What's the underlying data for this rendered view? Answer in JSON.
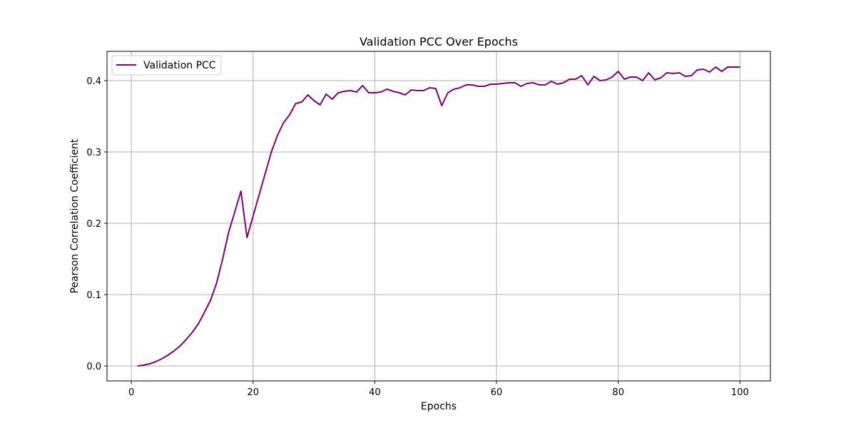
{
  "chart_data": {
    "type": "line",
    "title": "Validation PCC Over Epochs",
    "xlabel": "Epochs",
    "ylabel": "Pearson Correlation Coefficient",
    "xlim": [
      -4,
      105
    ],
    "ylim": [
      -0.021,
      0.441
    ],
    "xticks": [
      0,
      20,
      40,
      60,
      80,
      100
    ],
    "yticks": [
      0.0,
      0.1,
      0.2,
      0.3,
      0.4
    ],
    "xtick_labels": [
      "0",
      "20",
      "40",
      "60",
      "80",
      "100"
    ],
    "ytick_labels": [
      "0.0",
      "0.1",
      "0.2",
      "0.3",
      "0.4"
    ],
    "grid": true,
    "legend_position": "upper-left",
    "series": [
      {
        "name": "Validation PCC",
        "color": "#800080",
        "x": [
          1,
          2,
          3,
          4,
          5,
          6,
          7,
          8,
          9,
          10,
          11,
          12,
          13,
          14,
          15,
          16,
          17,
          18,
          19,
          20,
          21,
          22,
          23,
          24,
          25,
          26,
          27,
          28,
          29,
          30,
          31,
          32,
          33,
          34,
          35,
          36,
          37,
          38,
          39,
          40,
          41,
          42,
          43,
          44,
          45,
          46,
          47,
          48,
          49,
          50,
          51,
          52,
          53,
          54,
          55,
          56,
          57,
          58,
          59,
          60,
          61,
          62,
          63,
          64,
          65,
          66,
          67,
          68,
          69,
          70,
          71,
          72,
          73,
          74,
          75,
          76,
          77,
          78,
          79,
          80,
          81,
          82,
          83,
          84,
          85,
          86,
          87,
          88,
          89,
          90,
          91,
          92,
          93,
          94,
          95,
          96,
          97,
          98,
          99,
          100
        ],
        "y": [
          0.0,
          0.001,
          0.003,
          0.006,
          0.01,
          0.015,
          0.021,
          0.028,
          0.037,
          0.047,
          0.059,
          0.075,
          0.092,
          0.116,
          0.15,
          0.188,
          0.216,
          0.245,
          0.18,
          0.21,
          0.24,
          0.27,
          0.3,
          0.323,
          0.341,
          0.352,
          0.368,
          0.37,
          0.38,
          0.372,
          0.366,
          0.381,
          0.374,
          0.383,
          0.385,
          0.386,
          0.384,
          0.393,
          0.383,
          0.383,
          0.384,
          0.388,
          0.385,
          0.383,
          0.38,
          0.387,
          0.386,
          0.386,
          0.39,
          0.389,
          0.365,
          0.383,
          0.388,
          0.39,
          0.394,
          0.394,
          0.392,
          0.392,
          0.395,
          0.395,
          0.396,
          0.397,
          0.397,
          0.392,
          0.396,
          0.397,
          0.394,
          0.394,
          0.399,
          0.395,
          0.397,
          0.402,
          0.402,
          0.407,
          0.394,
          0.406,
          0.4,
          0.401,
          0.405,
          0.413,
          0.402,
          0.405,
          0.405,
          0.4,
          0.411,
          0.401,
          0.404,
          0.411,
          0.41,
          0.411,
          0.406,
          0.407,
          0.415,
          0.416,
          0.412,
          0.419,
          0.413,
          0.419,
          0.419,
          0.419
        ]
      }
    ]
  }
}
